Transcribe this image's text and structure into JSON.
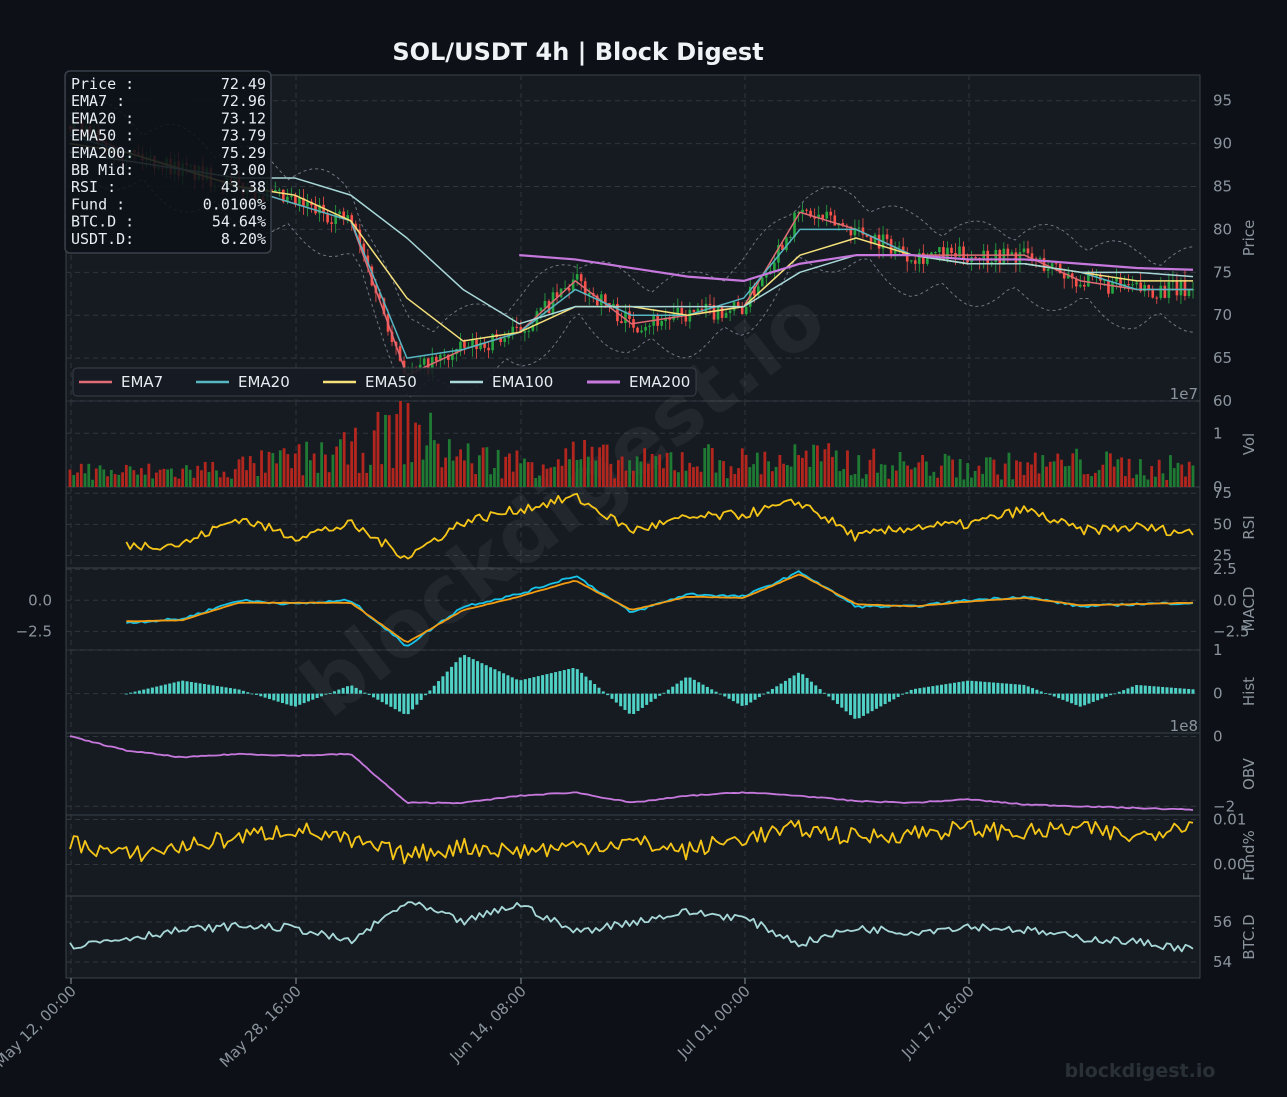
{
  "title": "SOL/USDT  4h  |  Block Digest",
  "watermark": "blockdigest.io",
  "colors": {
    "background": "#0d1117",
    "panel": "#161b22",
    "grid": "#30363d",
    "up": "#26a641",
    "down": "#f85149",
    "ema7": "#e06c75",
    "ema20": "#56b6c2",
    "ema50": "#f5e07a",
    "ema100": "#a8d8d8",
    "ema200": "#c678dd",
    "rsi": "#f5c518",
    "macd": "#17c3e8",
    "signal": "#f39c12",
    "hist": "#4fd1c5",
    "obv": "#c678dd",
    "funding": "#f5c518",
    "btcd": "#a8d8d8"
  },
  "info_box": [
    {
      "label": "Price :",
      "value": "72.49"
    },
    {
      "label": "EMA7  :",
      "value": "72.96"
    },
    {
      "label": "EMA20 :",
      "value": "73.12"
    },
    {
      "label": "EMA50 :",
      "value": "73.79"
    },
    {
      "label": "EMA200:",
      "value": "75.29"
    },
    {
      "label": "BB Mid:",
      "value": "73.00"
    },
    {
      "label": "RSI   :",
      "value": "43.38"
    },
    {
      "label": "Fund  :",
      "value": "0.0100%"
    },
    {
      "label": "BTC.D :",
      "value": "54.64%"
    },
    {
      "label": "USDT.D:",
      "value": "8.20%"
    }
  ],
  "legend": [
    "EMA7",
    "EMA20",
    "EMA50",
    "EMA100",
    "EMA200"
  ],
  "x_ticks": [
    "May 12, 00:00",
    "May 28, 16:00",
    "Jun 14, 08:00",
    "Jul 01, 00:00",
    "Jul 17, 16:00"
  ],
  "chart_data": [
    {
      "type": "line",
      "panel": "price",
      "ylabel": "Price",
      "ylim": [
        60,
        98
      ],
      "yticks": [
        "60",
        "65",
        "70",
        "75",
        "80",
        "85",
        "90",
        "95"
      ],
      "x": [
        "May 12, 00:00",
        "May 16, 04:00",
        "May 20, 08:00",
        "May 24, 12:00",
        "May 28, 16:00",
        "Jun 01, 20:00",
        "Jun 06, 00:00",
        "Jun 10, 04:00",
        "Jun 14, 08:00",
        "Jun 18, 12:00",
        "Jun 22, 16:00",
        "Jun 26, 20:00",
        "Jul 01, 00:00",
        "Jul 05, 04:00",
        "Jul 09, 08:00",
        "Jul 13, 12:00",
        "Jul 17, 16:00",
        "Jul 21, 20:00",
        "Jul 26, 00:00",
        "Jul 30, 04:00",
        "Aug 01, 16:00"
      ],
      "series": [
        {
          "name": "EMA7",
          "values": [
            92,
            89,
            87,
            85,
            83,
            81,
            63,
            66,
            68,
            74,
            69,
            70,
            71,
            82,
            80,
            77,
            77,
            77,
            74,
            73,
            73
          ]
        },
        {
          "name": "EMA20",
          "values": [
            91,
            89,
            87,
            85,
            83,
            81,
            65,
            66,
            68,
            73,
            70,
            70,
            72,
            80,
            80,
            77,
            76,
            76,
            75,
            73,
            73
          ]
        },
        {
          "name": "EMA50",
          "values": [
            90,
            89,
            87,
            85,
            84,
            81,
            72,
            67,
            68,
            71,
            71,
            70,
            71,
            77,
            79,
            77,
            76,
            76,
            75,
            74,
            74
          ]
        },
        {
          "name": "EMA100",
          "values": [
            89,
            88,
            87,
            86,
            86,
            84,
            79,
            73,
            69,
            71,
            71,
            71,
            71,
            75,
            77,
            77,
            76,
            76,
            75,
            75,
            74.5
          ]
        },
        {
          "name": "EMA200",
          "values": [
            null,
            null,
            null,
            null,
            null,
            null,
            null,
            null,
            77,
            76.5,
            75.5,
            74.5,
            74,
            76,
            77,
            77,
            76.5,
            76.5,
            76,
            75.5,
            75.3
          ]
        }
      ]
    },
    {
      "type": "bar",
      "panel": "volume",
      "ylabel": "Vol",
      "offset_label": "1e7",
      "ylim": [
        0,
        1.6
      ],
      "yticks": [
        "0",
        "1"
      ],
      "values": [
        0.35,
        0.3,
        0.32,
        0.4,
        0.55,
        0.7,
        1.2,
        0.6,
        0.5,
        0.65,
        0.45,
        0.6,
        0.5,
        0.6,
        0.5,
        0.45,
        0.4,
        0.45,
        0.5,
        0.4,
        0.4
      ]
    },
    {
      "type": "line",
      "panel": "rsi",
      "ylabel": "RSI",
      "ylim": [
        15,
        80
      ],
      "yticks": [
        "25",
        "50",
        "75"
      ],
      "series": [
        {
          "name": "RSI",
          "values": [
            null,
            33,
            34,
            55,
            40,
            50,
            24,
            52,
            62,
            72,
            45,
            55,
            58,
            68,
            40,
            48,
            50,
            62,
            45,
            48,
            43
          ]
        }
      ]
    },
    {
      "type": "line",
      "panel": "macd",
      "ylabel": "MACD",
      "ylim": [
        -4,
        2.6
      ],
      "yticks": [
        "−2.5",
        "0.0",
        "2.5"
      ],
      "left_yticks": [
        "−2.5",
        "0.0"
      ],
      "series": [
        {
          "name": "MACD",
          "values": [
            null,
            -1.8,
            -1.5,
            0.0,
            -0.3,
            0.0,
            -3.7,
            -0.5,
            0.5,
            2.0,
            -1.0,
            0.5,
            0.3,
            2.3,
            -0.5,
            -0.5,
            0.0,
            0.3,
            -0.5,
            -0.3,
            -0.2
          ]
        },
        {
          "name": "Signal",
          "values": [
            null,
            -1.7,
            -1.6,
            -0.2,
            -0.2,
            -0.2,
            -3.4,
            -0.8,
            0.3,
            1.6,
            -0.8,
            0.3,
            0.2,
            2.1,
            -0.3,
            -0.5,
            -0.1,
            0.2,
            -0.4,
            -0.3,
            -0.2
          ]
        }
      ]
    },
    {
      "type": "bar",
      "panel": "hist",
      "ylabel": "Hist",
      "ylim": [
        -0.9,
        1.0
      ],
      "yticks": [
        "0",
        "1"
      ],
      "values": [
        null,
        0.0,
        0.3,
        0.1,
        -0.3,
        0.2,
        -0.5,
        0.9,
        0.3,
        0.6,
        -0.5,
        0.4,
        -0.3,
        0.5,
        -0.6,
        0.1,
        0.3,
        0.2,
        -0.3,
        0.2,
        0.1
      ]
    },
    {
      "type": "line",
      "panel": "obv",
      "ylabel": "OBV",
      "offset_label": "1e8",
      "ylim": [
        -2.25,
        0.1
      ],
      "yticks": [
        "−2",
        "0"
      ],
      "series": [
        {
          "name": "OBV",
          "values": [
            0,
            -0.4,
            -0.6,
            -0.5,
            -0.55,
            -0.5,
            -1.9,
            -1.9,
            -1.7,
            -1.6,
            -1.9,
            -1.7,
            -1.6,
            -1.7,
            -1.85,
            -1.9,
            -1.8,
            -1.95,
            -2.0,
            -2.05,
            -2.1
          ]
        }
      ]
    },
    {
      "type": "line",
      "panel": "funding",
      "ylabel": "Fund%",
      "ylim": [
        -0.007,
        0.011
      ],
      "yticks": [
        "0.00",
        "0.01"
      ],
      "series": [
        {
          "name": "Funding",
          "values": [
            0.005,
            0.002,
            0.004,
            0.006,
            0.008,
            0.005,
            0.002,
            0.004,
            0.003,
            0.004,
            0.005,
            0.003,
            0.006,
            0.008,
            0.006,
            0.007,
            0.008,
            0.007,
            0.008,
            0.006,
            0.01
          ]
        }
      ]
    },
    {
      "type": "line",
      "panel": "btcd",
      "ylabel": "BTC.D",
      "ylim": [
        53.2,
        57.3
      ],
      "yticks": [
        "54",
        "56"
      ],
      "series": [
        {
          "name": "BTC.D",
          "values": [
            54.8,
            55.2,
            55.6,
            55.8,
            55.7,
            55.0,
            57.0,
            56.0,
            56.9,
            55.5,
            56.0,
            56.5,
            56.2,
            54.9,
            55.7,
            55.5,
            55.8,
            55.6,
            55.2,
            55.0,
            54.64
          ]
        }
      ]
    }
  ]
}
